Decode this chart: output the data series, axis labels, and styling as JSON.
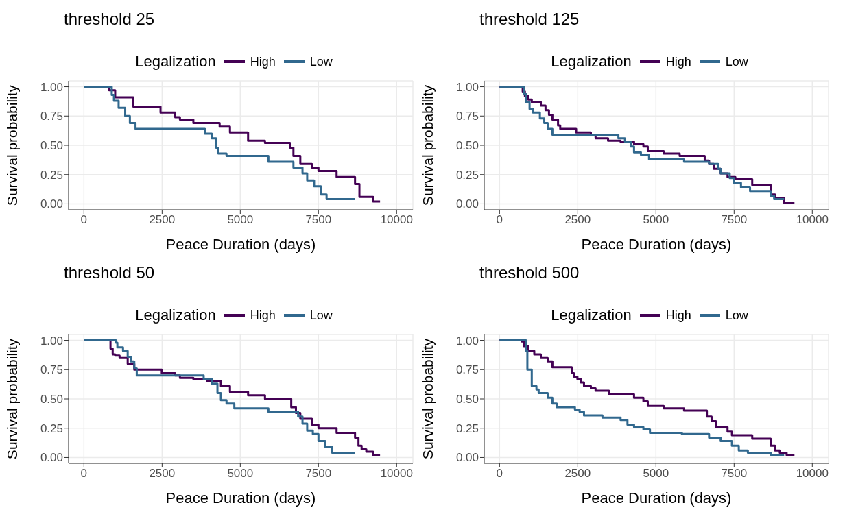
{
  "chart_data": [
    {
      "type": "step",
      "title": "threshold 25",
      "legend_title": "Legalization",
      "xlabel": "Peace Duration (days)",
      "ylabel": "Survival probability",
      "xlim": [
        -490,
        10520
      ],
      "xticks": [
        0,
        2500,
        5000,
        7500,
        10000
      ],
      "ylim": [
        -0.05,
        1.05
      ],
      "yticks": [
        {
          "value": 0,
          "label": "0.00"
        },
        {
          "value": 0.25,
          "label": "0.25"
        },
        {
          "value": 0.5,
          "label": "0.50"
        },
        {
          "value": 0.75,
          "label": "0.75"
        },
        {
          "value": 1,
          "label": "1.00"
        }
      ],
      "grid": true,
      "legend": "top",
      "series": [
        {
          "name": "High",
          "color": "#440154",
          "x": [
            0,
            810,
            1000,
            1580,
            2450,
            2920,
            3070,
            3500,
            4340,
            4670,
            5250,
            5790,
            6590,
            6700,
            6920,
            7290,
            7500,
            8080,
            8670,
            8810,
            9250,
            9470
          ],
          "values": [
            1,
            0.97,
            0.91,
            0.83,
            0.78,
            0.74,
            0.72,
            0.69,
            0.66,
            0.61,
            0.54,
            0.52,
            0.48,
            0.41,
            0.34,
            0.31,
            0.28,
            0.23,
            0.17,
            0.06,
            0.02,
            0.02
          ]
        },
        {
          "name": "Low",
          "color": "#31688e",
          "x": [
            0,
            890,
            960,
            1110,
            1320,
            1470,
            1650,
            1760,
            3870,
            4090,
            4230,
            4300,
            4560,
            5900,
            6700,
            6990,
            7140,
            7360,
            7580,
            7760,
            8670
          ],
          "values": [
            1,
            0.93,
            0.88,
            0.82,
            0.75,
            0.69,
            0.64,
            0.64,
            0.6,
            0.56,
            0.48,
            0.43,
            0.41,
            0.36,
            0.31,
            0.26,
            0.2,
            0.15,
            0.08,
            0.04,
            0.04
          ]
        }
      ]
    },
    {
      "type": "step",
      "title": "threshold 125",
      "legend_title": "Legalization",
      "xlabel": "Peace Duration (days)",
      "ylabel": "Survival probability",
      "xlim": [
        -490,
        10520
      ],
      "xticks": [
        0,
        2500,
        5000,
        7500,
        10000
      ],
      "ylim": [
        -0.05,
        1.05
      ],
      "yticks": [
        {
          "value": 0,
          "label": "0.00"
        },
        {
          "value": 0.25,
          "label": "0.25"
        },
        {
          "value": 0.5,
          "label": "0.50"
        },
        {
          "value": 0.75,
          "label": "0.75"
        },
        {
          "value": 1,
          "label": "1.00"
        }
      ],
      "grid": true,
      "legend": "top",
      "series": [
        {
          "name": "High",
          "color": "#440154",
          "x": [
            0,
            740,
            810,
            920,
            1030,
            1320,
            1470,
            1580,
            1690,
            1870,
            1940,
            2450,
            2920,
            3070,
            3470,
            3870,
            4300,
            4600,
            4740,
            5250,
            5760,
            6560,
            6700,
            6850,
            7070,
            7290,
            7540,
            8080,
            8670,
            8810,
            9100,
            9430
          ],
          "values": [
            1,
            0.96,
            0.92,
            0.89,
            0.87,
            0.84,
            0.8,
            0.76,
            0.72,
            0.67,
            0.64,
            0.61,
            0.59,
            0.56,
            0.54,
            0.53,
            0.51,
            0.49,
            0.45,
            0.43,
            0.41,
            0.37,
            0.34,
            0.3,
            0.26,
            0.23,
            0.21,
            0.16,
            0.08,
            0.05,
            0.01,
            0.01
          ]
        },
        {
          "name": "Low",
          "color": "#31688e",
          "x": [
            0,
            780,
            850,
            960,
            1070,
            1290,
            1430,
            1540,
            1690,
            1800,
            3800,
            4010,
            4200,
            4300,
            4520,
            4780,
            5900,
            6700,
            6990,
            7070,
            7360,
            7500,
            7720,
            8010,
            8670,
            8780,
            9100
          ],
          "values": [
            1,
            0.94,
            0.87,
            0.81,
            0.78,
            0.73,
            0.69,
            0.64,
            0.59,
            0.59,
            0.56,
            0.53,
            0.49,
            0.44,
            0.42,
            0.38,
            0.36,
            0.34,
            0.3,
            0.26,
            0.22,
            0.18,
            0.14,
            0.11,
            0.07,
            0.04,
            0.04
          ]
        }
      ]
    },
    {
      "type": "step",
      "title": "threshold 50",
      "legend_title": "Legalization",
      "xlabel": "Peace Duration (days)",
      "ylabel": "Survival probability",
      "xlim": [
        -490,
        10520
      ],
      "xticks": [
        0,
        2500,
        5000,
        7500,
        10000
      ],
      "ylim": [
        -0.05,
        1.05
      ],
      "yticks": [
        {
          "value": 0,
          "label": "0.00"
        },
        {
          "value": 0.25,
          "label": "0.25"
        },
        {
          "value": 0.5,
          "label": "0.50"
        },
        {
          "value": 0.75,
          "label": "0.75"
        },
        {
          "value": 1,
          "label": "1.00"
        }
      ],
      "grid": true,
      "legend": "top",
      "series": [
        {
          "name": "High",
          "color": "#440154",
          "x": [
            0,
            850,
            920,
            1000,
            1140,
            1400,
            1610,
            2490,
            2920,
            3070,
            3500,
            3940,
            4380,
            4670,
            5250,
            5790,
            6630,
            6780,
            6920,
            7290,
            7500,
            8080,
            8670,
            8780,
            8880,
            9030,
            9250,
            9470
          ],
          "values": [
            1,
            0.93,
            0.88,
            0.87,
            0.85,
            0.8,
            0.75,
            0.72,
            0.7,
            0.68,
            0.67,
            0.65,
            0.61,
            0.56,
            0.53,
            0.5,
            0.43,
            0.38,
            0.33,
            0.28,
            0.25,
            0.21,
            0.17,
            0.1,
            0.07,
            0.05,
            0.02,
            0.02
          ]
        },
        {
          "name": "Low",
          "color": "#31688e",
          "x": [
            0,
            1030,
            1070,
            1250,
            1400,
            1500,
            1610,
            1690,
            1800,
            3830,
            4090,
            4270,
            4380,
            4560,
            4810,
            5900,
            6850,
            6990,
            7140,
            7320,
            7500,
            7720,
            7940,
            8670
          ],
          "values": [
            1,
            0.98,
            0.94,
            0.91,
            0.86,
            0.82,
            0.76,
            0.7,
            0.7,
            0.67,
            0.63,
            0.55,
            0.49,
            0.46,
            0.42,
            0.39,
            0.35,
            0.29,
            0.23,
            0.2,
            0.14,
            0.09,
            0.04,
            0.04
          ]
        }
      ]
    },
    {
      "type": "step",
      "title": "threshold 500",
      "legend_title": "Legalization",
      "xlabel": "Peace Duration (days)",
      "ylabel": "Survival probability",
      "xlim": [
        -490,
        10520
      ],
      "xticks": [
        0,
        2500,
        5000,
        7500,
        10000
      ],
      "ylim": [
        -0.05,
        1.05
      ],
      "yticks": [
        {
          "value": 0,
          "label": "0.00"
        },
        {
          "value": 0.25,
          "label": "0.25"
        },
        {
          "value": 0.5,
          "label": "0.50"
        },
        {
          "value": 0.75,
          "label": "0.75"
        },
        {
          "value": 1,
          "label": "1.00"
        }
      ],
      "grid": true,
      "legend": "top",
      "series": [
        {
          "name": "High",
          "color": "#440154",
          "x": [
            0,
            710,
            780,
            920,
            1110,
            1320,
            1540,
            1690,
            2310,
            2380,
            2490,
            2600,
            2700,
            2920,
            3070,
            3500,
            4300,
            4600,
            4740,
            5250,
            5900,
            6630,
            6780,
            6920,
            7290,
            7430,
            8080,
            8670,
            8810,
            8960,
            9180,
            9430
          ],
          "values": [
            1,
            0.99,
            0.95,
            0.91,
            0.88,
            0.85,
            0.82,
            0.77,
            0.72,
            0.69,
            0.67,
            0.64,
            0.61,
            0.59,
            0.57,
            0.54,
            0.51,
            0.48,
            0.44,
            0.42,
            0.4,
            0.35,
            0.31,
            0.26,
            0.22,
            0.19,
            0.16,
            0.1,
            0.06,
            0.04,
            0.02,
            0.02
          ]
        },
        {
          "name": "Low",
          "color": "#31688e",
          "x": [
            0,
            850,
            890,
            1030,
            1180,
            1250,
            1540,
            1690,
            1830,
            2410,
            2560,
            2700,
            3290,
            3870,
            4090,
            4300,
            4600,
            4810,
            5830,
            6700,
            7070,
            7430,
            7650,
            7940,
            8670,
            8810,
            9100
          ],
          "values": [
            1,
            0.91,
            0.75,
            0.61,
            0.58,
            0.55,
            0.51,
            0.46,
            0.43,
            0.41,
            0.39,
            0.36,
            0.34,
            0.32,
            0.28,
            0.26,
            0.24,
            0.21,
            0.2,
            0.17,
            0.14,
            0.1,
            0.06,
            0.04,
            0.02,
            0.02,
            0.02
          ]
        }
      ]
    }
  ]
}
